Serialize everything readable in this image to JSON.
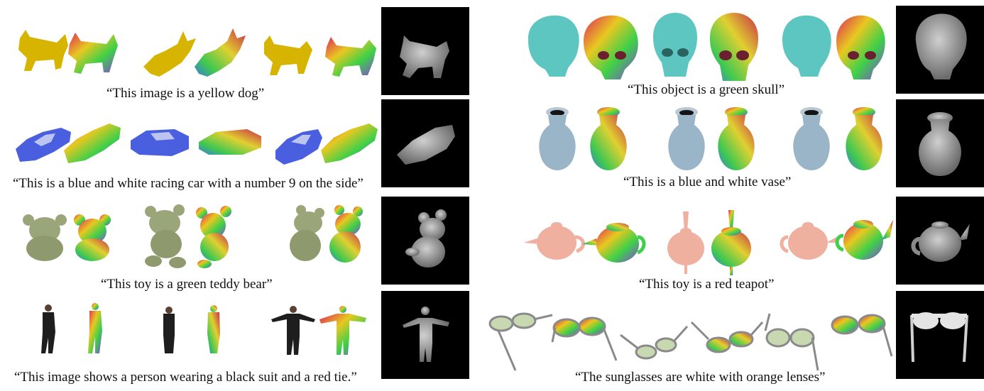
{
  "captions": {
    "dog": "“This image is a yellow dog”",
    "car": "“This is a blue and white racing car with a number 9 on the side”",
    "bear": "“This toy is a green teddy bear”",
    "person": "“This image shows a person wearing a black suit and a red tie.”",
    "skull": "“This object is a green skull”",
    "vase": "“This is a blue and white vase”",
    "teapot": "“This toy is a red teapot”",
    "sunglasses": "“The sunglasses are white with orange lenses”"
  },
  "colors": {
    "background": "#ffffff",
    "depth_panel": "#000000",
    "dog_body": "#d6b400",
    "car_body": "#4a5fe0",
    "bear_body": "#9aa67a",
    "person_body": "#1e1e1e",
    "skull_body": "#5ec6c0",
    "vase_body": "#9ab4c8",
    "teapot_body": "#f0b0a0",
    "glasses_frame": "#8a8a8a"
  }
}
